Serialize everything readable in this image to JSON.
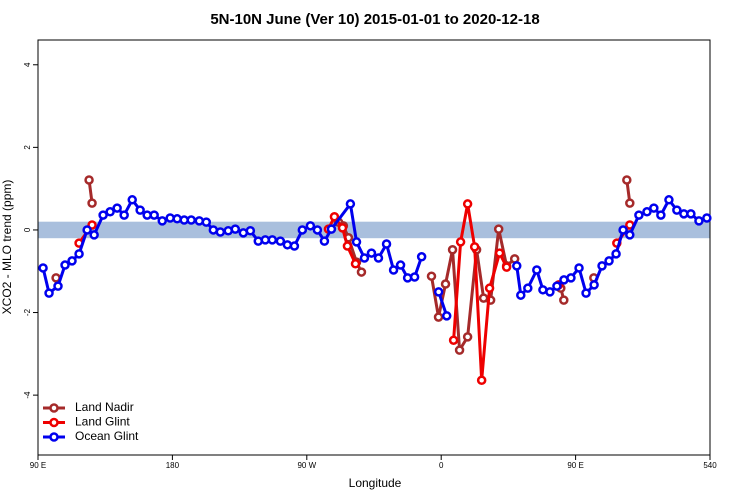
{
  "chart_data": {
    "type": "line",
    "title": "5N-10N June (Ver 10)   2015-01-01 to 2020-12-18",
    "x_label": "Longitude",
    "y_label": "XCO2 - MLO trend (ppm)",
    "xlim": [
      90,
      540
    ],
    "xticks": [
      {
        "value": 90,
        "label": "90 E"
      },
      180,
      {
        "value": 270,
        "label": "90 W"
      },
      {
        "value": 360,
        "label": "0"
      },
      {
        "value": 450,
        "label": "90 E"
      },
      540
    ],
    "ylim": [
      -5.45,
      4.6
    ],
    "yticks": [
      -4,
      -2,
      0,
      2,
      4
    ],
    "band": [
      -0.2,
      0.2
    ],
    "band_color": "#a9bfdd",
    "legend": "bottom-left",
    "series": [
      {
        "name": "Land Nadir",
        "color": "#a52a2a",
        "x": [
          102.1,
          null,
          124.2,
          126.2,
          null,
          291.2,
          294.5,
          297.9,
          303.3,
          306.6,
          null,
          353.5,
          358.2,
          362.9,
          367.6,
          372.3,
          377.7,
          383.7,
          388.4,
          393.1,
          398.5,
          403.8,
          409.2,
          null,
          440.1,
          442.1,
          null,
          462.2,
          null,
          484.3,
          486.3
        ],
        "values": [
          -1.16,
          null,
          1.21,
          0.65,
          null,
          0.19,
          0.1,
          -0.19,
          -0.78,
          -1.02,
          null,
          -1.12,
          -2.11,
          -1.31,
          -0.48,
          -2.91,
          -2.59,
          -0.48,
          -1.65,
          -1.7,
          0.02,
          -0.87,
          -0.7,
          null,
          -1.41,
          -1.7,
          null,
          -1.16,
          null,
          1.21,
          0.65
        ]
      },
      {
        "name": "Land Glint",
        "color": "#ee0000",
        "x": [
          117.5,
          126.2,
          null,
          284.5,
          288.5,
          293.9,
          297.2,
          302.6,
          null,
          368.3,
          373.0,
          377.7,
          382.4,
          387.1,
          392.4,
          399.1,
          403.8,
          null,
          438.7,
          null,
          477.6,
          486.3
        ],
        "values": [
          -0.32,
          0.12,
          null,
          0.02,
          0.32,
          0.05,
          -0.39,
          -0.82,
          null,
          -2.67,
          -0.29,
          0.63,
          -0.41,
          -3.64,
          -1.41,
          -0.56,
          -0.9,
          null,
          -1.33,
          null,
          -0.32,
          0.12
        ]
      },
      {
        "name": "Ocean Glint",
        "color": "#0000ee",
        "x": [
          93.4,
          97.4,
          103.4,
          108.1,
          112.8,
          117.5,
          122.9,
          127.6,
          133.6,
          138.3,
          143.0,
          147.7,
          153.1,
          158.4,
          163.1,
          167.8,
          173.2,
          178.5,
          183.2,
          187.9,
          192.6,
          198.0,
          202.7,
          207.4,
          212.1,
          217.4,
          222.1,
          227.5,
          232.2,
          237.5,
          242.2,
          246.9,
          252.3,
          257.0,
          261.7,
          267.0,
          272.4,
          277.1,
          281.8,
          286.5,
          299.2,
          303.3,
          308.6,
          313.3,
          318.0,
          323.4,
          328.1,
          332.8,
          337.5,
          342.2,
          346.9,
          null,
          358.3,
          363.7,
          null,
          410.6,
          413.3,
          418.0,
          424.0,
          428.1,
          432.8,
          437.5,
          442.2,
          446.9,
          452.3,
          457.0,
          462.4,
          467.7,
          472.4,
          477.1,
          481.8,
          486.3,
          492.4,
          497.8,
          502.4,
          507.1,
          512.5,
          517.8,
          522.5,
          527.2,
          532.6,
          537.9
        ],
        "values": [
          -0.92,
          -1.53,
          -1.36,
          -0.85,
          -0.75,
          -0.58,
          0,
          -0.12,
          0.36,
          0.44,
          0.53,
          0.36,
          0.73,
          0.48,
          0.36,
          0.36,
          0.22,
          0.29,
          0.27,
          0.24,
          0.24,
          0.22,
          0.19,
          0,
          -0.05,
          -0.02,
          0.02,
          -0.07,
          -0.02,
          -0.27,
          -0.24,
          -0.24,
          -0.27,
          -0.36,
          -0.39,
          0,
          0.1,
          0,
          -0.27,
          0.02,
          0.63,
          -0.29,
          -0.68,
          -0.56,
          -0.68,
          -0.34,
          -0.97,
          -0.85,
          -1.16,
          -1.14,
          -0.65,
          null,
          -1.5,
          -2.08,
          null,
          -0.87,
          -1.58,
          -1.41,
          -0.97,
          -1.45,
          -1.5,
          -1.36,
          -1.21,
          -1.16,
          -0.92,
          -1.53,
          -1.33,
          -0.87,
          -0.75,
          -0.58,
          0,
          -0.12,
          0.36,
          0.44,
          0.53,
          0.36,
          0.73,
          0.48,
          0.39,
          0.39,
          0.22,
          0.29
        ]
      }
    ]
  }
}
